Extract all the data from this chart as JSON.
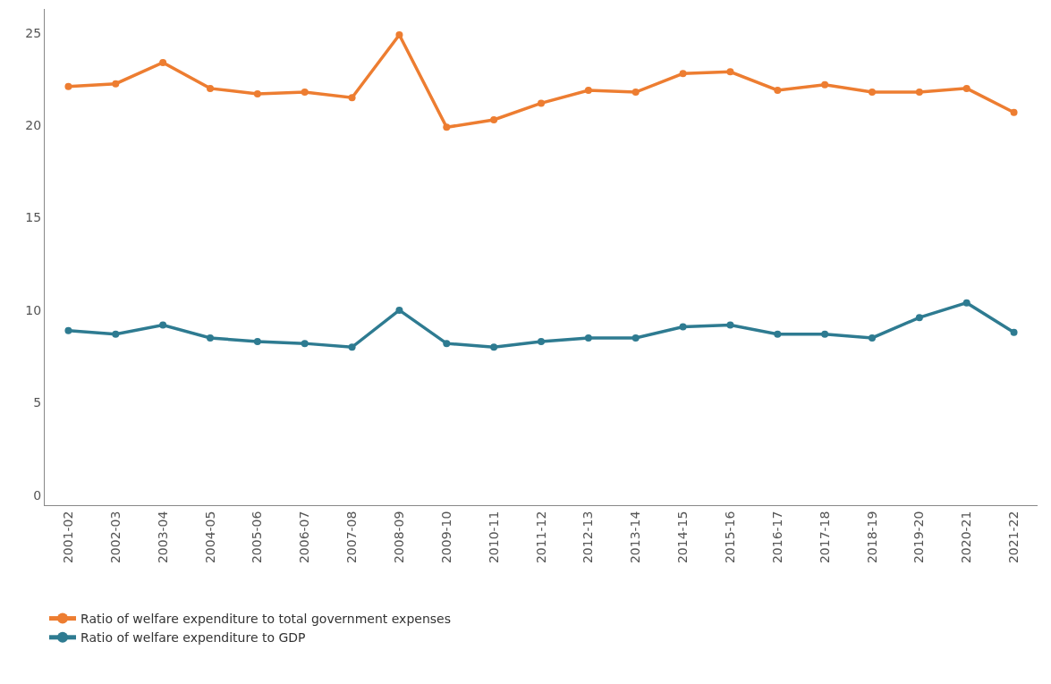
{
  "chart_data": {
    "type": "line",
    "categories": [
      "2001-02",
      "2002-03",
      "2003-04",
      "2004-05",
      "2005-06",
      "2006-07",
      "2007-08",
      "2008-09",
      "2009-10",
      "2010-11",
      "2011-12",
      "2012-13",
      "2013-14",
      "2014-15",
      "2015-16",
      "2016-17",
      "2017-18",
      "2018-19",
      "2019-20",
      "2020-21",
      "2021-22"
    ],
    "series": [
      {
        "name": "Ratio of welfare expenditure to total government expenses",
        "color": "#ed7d31",
        "values": [
          22.1,
          22.25,
          23.4,
          22.0,
          21.7,
          21.8,
          21.5,
          24.9,
          19.9,
          20.3,
          21.2,
          21.9,
          21.8,
          22.8,
          22.9,
          21.9,
          22.2,
          21.8,
          21.8,
          22.0,
          20.7
        ]
      },
      {
        "name": "Ratio of welfare expenditure to GDP",
        "color": "#2e7b91",
        "values": [
          8.9,
          8.7,
          9.2,
          8.5,
          8.3,
          8.2,
          8.0,
          10.0,
          8.2,
          8.0,
          8.3,
          8.5,
          8.5,
          9.1,
          9.2,
          8.7,
          8.7,
          8.5,
          9.6,
          10.4,
          8.8
        ]
      }
    ],
    "ylim": [
      -0.55,
      26.3
    ],
    "yticks": [
      0,
      5,
      10,
      15,
      20,
      25
    ],
    "grid": false,
    "legend": "bottom left",
    "marker": "circle",
    "line_style": "solid"
  }
}
